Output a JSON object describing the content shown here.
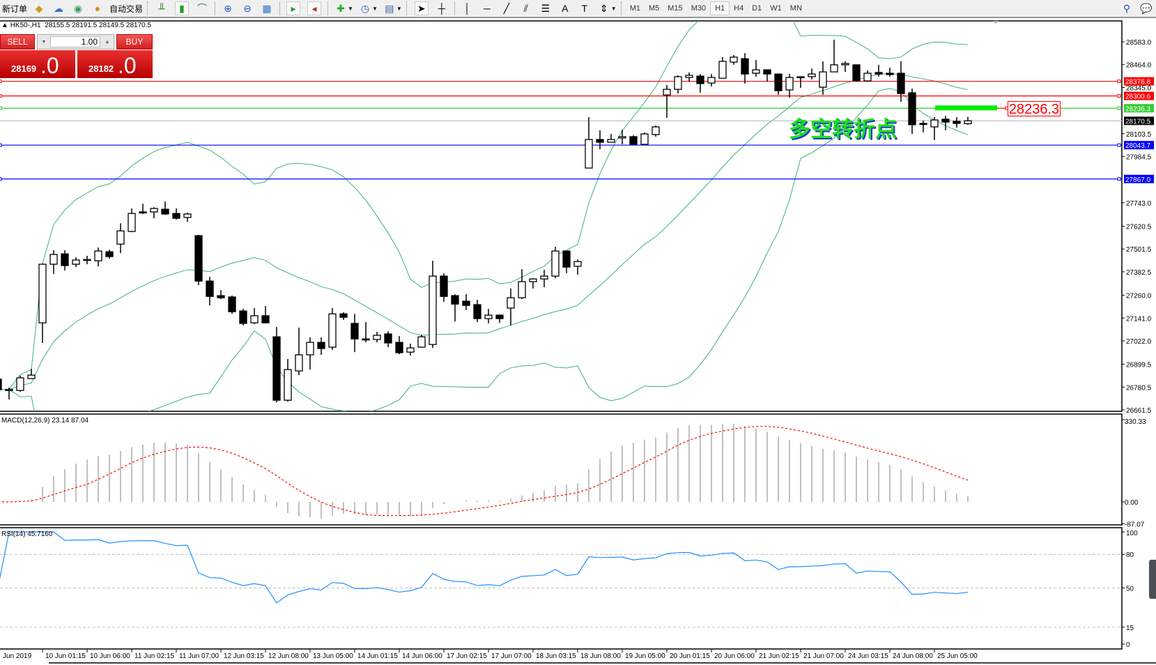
{
  "toolbar": {
    "new_order": "新订单",
    "auto_trading": "自动交易",
    "icons": [
      "history-center-icon",
      "cloud-icon",
      "signal-icon",
      "bar-chart-icon",
      "candlestick-icon",
      "line-chart-icon",
      "zoom-in-icon",
      "zoom-out-icon",
      "tile-windows-icon",
      "chart-shift-icon",
      "autoscroll-icon",
      "new-chart-icon",
      "periods-clock-icon",
      "templates-icon",
      "cursor-icon",
      "crosshair-icon",
      "vertical-line-icon",
      "horizontal-line-icon",
      "trendline-icon",
      "equidistant-channel-icon",
      "fibonacci-icon",
      "text-icon",
      "text-label-icon",
      "arrows-icon",
      "search-icon",
      "chat-icon"
    ],
    "timeframes": [
      "M1",
      "M5",
      "M15",
      "M30",
      "H1",
      "H4",
      "D1",
      "W1",
      "MN"
    ],
    "active_timeframe": "H1"
  },
  "header": {
    "symbol": "HK50-,H1",
    "ohlc": "28155.5 28191.5 28149.5 28170.5"
  },
  "trade_panel": {
    "sell_label": "SELL",
    "buy_label": "BUY",
    "lot": "1.00",
    "sell_price_main": "28169",
    "sell_price_frac": ".0",
    "buy_price_main": "28182",
    "buy_price_frac": ".0"
  },
  "annotation": {
    "text": "多空转折点",
    "level_value": "28236.3",
    "text_color": "#1ee01e"
  },
  "indicators": {
    "macd_label": "MACD(12,26,9) 23.14 87.04",
    "rsi_label": "RSI(14) 45.7160"
  },
  "chart_data": {
    "type": "candlestick",
    "symbol": "HK50-",
    "timeframe": "H1",
    "price_axis_ticks": [
      "28583.0",
      "28464.0",
      "28345.0",
      "28103.5",
      "27984.5",
      "27743.0",
      "27620.5",
      "27501.5",
      "27382.5",
      "27260.0",
      "27141.0",
      "27022.0",
      "26899.5",
      "26780.5",
      "26661.5"
    ],
    "price_range": [
      26661.5,
      28583.0
    ],
    "levels": [
      {
        "value": "28376.8",
        "color": "#ff0000"
      },
      {
        "value": "28300.6",
        "color": "#ff0000"
      },
      {
        "value": "28236.3",
        "color": "#32cd32"
      },
      {
        "value": "28170.5",
        "color": "#000000",
        "line_color": "#c0c0c0"
      },
      {
        "value": "28043.7",
        "color": "#0000ff"
      },
      {
        "value": "27867.0",
        "color": "#0000ff"
      }
    ],
    "time_labels": [
      "Jun 2019",
      "10 Jun 01:15",
      "10 Jun 06:00",
      "11 Jun 02:15",
      "11 Jun 07:00",
      "12 Jun 03:15",
      "12 Jun 08:00",
      "13 Jun 05:00",
      "14 Jun 01:15",
      "14 Jun 06:00",
      "17 Jun 02:15",
      "17 Jun 07:00",
      "18 Jun 03:15",
      "18 Jun 08:00",
      "19 Jun 05:00",
      "20 Jun 01:15",
      "20 Jun 06:00",
      "21 Jun 02:15",
      "21 Jun 07:00",
      "24 Jun 03:15",
      "24 Jun 08:00",
      "25 Jun 05:00"
    ],
    "candles_ohlc": [
      [
        26822,
        26833,
        26756,
        26767
      ],
      [
        26767,
        26778,
        26716,
        26768
      ],
      [
        26763,
        26840,
        26756,
        26829
      ],
      [
        26825,
        26876,
        26825,
        26843
      ],
      [
        27116,
        27426,
        27011,
        27422
      ],
      [
        27422,
        27495,
        27371,
        27473
      ],
      [
        27476,
        27495,
        27389,
        27415
      ],
      [
        27422,
        27458,
        27407,
        27444
      ],
      [
        27444,
        27466,
        27422,
        27447
      ],
      [
        27440,
        27509,
        27411,
        27491
      ],
      [
        27487,
        27498,
        27451,
        27462
      ],
      [
        27527,
        27636,
        27480,
        27596
      ],
      [
        27593,
        27713,
        27589,
        27687
      ],
      [
        27695,
        27738,
        27684,
        27691
      ],
      [
        27695,
        27720,
        27662,
        27713
      ],
      [
        27709,
        27749,
        27680,
        27684
      ],
      [
        27687,
        27713,
        27655,
        27662
      ],
      [
        27666,
        27691,
        27644,
        27684
      ],
      [
        27571,
        27575,
        27313,
        27334
      ],
      [
        27334,
        27356,
        27207,
        27254
      ],
      [
        27258,
        27287,
        27240,
        27247
      ],
      [
        27251,
        27258,
        27163,
        27174
      ],
      [
        27178,
        27189,
        27102,
        27113
      ],
      [
        27116,
        27193,
        27109,
        27153
      ],
      [
        27153,
        27204,
        27116,
        27116
      ],
      [
        27043,
        27094,
        26701,
        26712
      ],
      [
        26712,
        26927,
        26705,
        26872
      ],
      [
        26865,
        27091,
        26843,
        26949
      ],
      [
        26949,
        27040,
        26872,
        27014
      ],
      [
        27014,
        27040,
        26949,
        26982
      ],
      [
        26989,
        27193,
        26974,
        27163
      ],
      [
        27163,
        27171,
        27131,
        27145
      ],
      [
        27113,
        27163,
        26963,
        27032
      ],
      [
        27032,
        27120,
        27014,
        27029
      ],
      [
        27029,
        27069,
        27014,
        27051
      ],
      [
        27058,
        27072,
        26989,
        27011
      ],
      [
        27014,
        27047,
        26952,
        26960
      ],
      [
        26963,
        27007,
        26945,
        26985
      ],
      [
        26989,
        27054,
        26989,
        27043
      ],
      [
        27003,
        27440,
        26985,
        27360
      ],
      [
        27360,
        27375,
        27226,
        27254
      ],
      [
        27258,
        27265,
        27123,
        27214
      ],
      [
        27229,
        27265,
        27182,
        27207
      ],
      [
        27211,
        27236,
        27120,
        27138
      ],
      [
        27138,
        27189,
        27113,
        27156
      ],
      [
        27156,
        27160,
        27116,
        27138
      ],
      [
        27193,
        27295,
        27102,
        27247
      ],
      [
        27247,
        27396,
        27240,
        27331
      ],
      [
        27331,
        27349,
        27295,
        27345
      ],
      [
        27345,
        27393,
        27302,
        27360
      ],
      [
        27360,
        27513,
        27349,
        27491
      ],
      [
        27491,
        27491,
        27375,
        27407
      ],
      [
        27411,
        27447,
        27367,
        27436
      ],
      [
        27924,
        28190,
        27924,
        28073
      ],
      [
        28073,
        28121,
        28022,
        28059
      ],
      [
        28059,
        28102,
        28059,
        28073
      ],
      [
        28081,
        28124,
        28048,
        28088
      ],
      [
        28088,
        28095,
        28048,
        28048
      ],
      [
        28048,
        28110,
        28048,
        28102
      ],
      [
        28099,
        28146,
        28088,
        28139
      ],
      [
        28306,
        28357,
        28186,
        28335
      ],
      [
        28335,
        28408,
        28313,
        28401
      ],
      [
        28397,
        28423,
        28375,
        28408
      ],
      [
        28404,
        28415,
        28317,
        28365
      ],
      [
        28368,
        28415,
        28350,
        28397
      ],
      [
        28393,
        28503,
        28393,
        28481
      ],
      [
        28477,
        28514,
        28463,
        28503
      ],
      [
        28495,
        28524,
        28365,
        28415
      ],
      [
        28419,
        28488,
        28401,
        28437
      ],
      [
        28437,
        28437,
        28375,
        28415
      ],
      [
        28415,
        28415,
        28306,
        28328
      ],
      [
        28332,
        28415,
        28292,
        28397
      ],
      [
        28401,
        28401,
        28343,
        28401
      ],
      [
        28401,
        28444,
        28386,
        28415
      ],
      [
        28346,
        28481,
        28306,
        28426
      ],
      [
        28426,
        28594,
        28426,
        28463
      ],
      [
        28463,
        28481,
        28426,
        28470
      ],
      [
        28463,
        28463,
        28375,
        28379
      ],
      [
        28379,
        28434,
        28375,
        28419
      ],
      [
        28423,
        28463,
        28401,
        28415
      ],
      [
        28419,
        28448,
        28401,
        28412
      ],
      [
        28419,
        28481,
        28270,
        28313
      ],
      [
        28317,
        28339,
        28102,
        28150
      ],
      [
        28157,
        28172,
        28110,
        28154
      ],
      [
        28139,
        28190,
        28070,
        28175
      ],
      [
        28179,
        28197,
        28121,
        28164
      ],
      [
        28168,
        28190,
        28135,
        28157
      ],
      [
        28155.5,
        28191.5,
        28149.5,
        28170.5
      ]
    ],
    "overlay": "Bollinger Bands",
    "bands_color": "#3cb371",
    "macd": {
      "params": "12,26,9",
      "axis_ticks": [
        "330.33",
        "0.00",
        "-87.07"
      ],
      "range": [
        -87.07,
        330.33
      ],
      "histogram_color": "#c0c0c0",
      "signal_color": "#ff0000"
    },
    "rsi": {
      "period": 14,
      "axis_ticks": [
        "100",
        "80",
        "50",
        "15",
        "0"
      ],
      "levels": [
        80,
        50,
        15
      ],
      "color": "#1e90ff"
    }
  }
}
